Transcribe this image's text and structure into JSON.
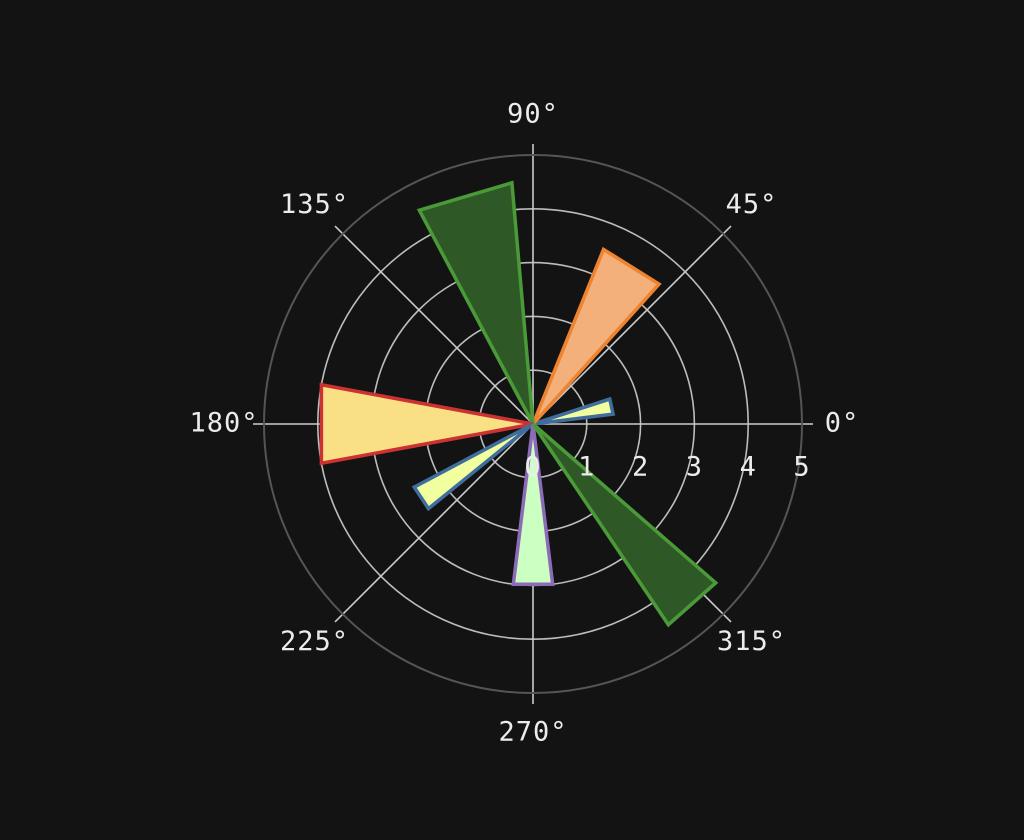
{
  "chart_data": {
    "type": "polar-bar",
    "theta_direction": "counterclockwise",
    "theta_zero": "east",
    "rlim": [
      0,
      5
    ],
    "angle_ticks": [
      {
        "deg": 0,
        "label": "0°"
      },
      {
        "deg": 45,
        "label": "45°"
      },
      {
        "deg": 90,
        "label": "90°"
      },
      {
        "deg": 135,
        "label": "135°"
      },
      {
        "deg": 180,
        "label": "180°"
      },
      {
        "deg": 225,
        "label": "225°"
      },
      {
        "deg": 270,
        "label": "270°"
      },
      {
        "deg": 315,
        "label": "315°"
      }
    ],
    "radial_ticks": [
      {
        "value": 0,
        "label": "0"
      },
      {
        "value": 1,
        "label": "1"
      },
      {
        "value": 2,
        "label": "2"
      },
      {
        "value": 3,
        "label": "3"
      },
      {
        "value": 4,
        "label": "4"
      },
      {
        "value": 5,
        "label": "5"
      }
    ],
    "radial_tick_label_angle_deg": 0,
    "grid": true,
    "bars": [
      {
        "theta_deg": 12.5,
        "width_deg": 11,
        "r": 1.5,
        "fill": "#f2ff9e",
        "edge": "#3f6e9e"
      },
      {
        "theta_deg": 58,
        "width_deg": 20,
        "r": 3.5,
        "fill": "#f4b07a",
        "edge": "#ef8430"
      },
      {
        "theta_deg": 106.5,
        "width_deg": 23,
        "r": 4.5,
        "fill": "#2f5827",
        "edge": "#4a9b38"
      },
      {
        "theta_deg": 180,
        "width_deg": 21,
        "r": 4.0,
        "fill": "#fae084",
        "edge": "#cc3232"
      },
      {
        "theta_deg": 213.5,
        "width_deg": 11,
        "r": 2.5,
        "fill": "#f2ff9e",
        "edge": "#3f6e9e"
      },
      {
        "theta_deg": 270,
        "width_deg": 14,
        "r": 3.0,
        "fill": "#ccffc2",
        "edge": "#8c6bb8"
      },
      {
        "theta_deg": 311.5,
        "width_deg": 15,
        "r": 4.5,
        "fill": "#2f5827",
        "edge": "#4a9b38"
      }
    ]
  }
}
